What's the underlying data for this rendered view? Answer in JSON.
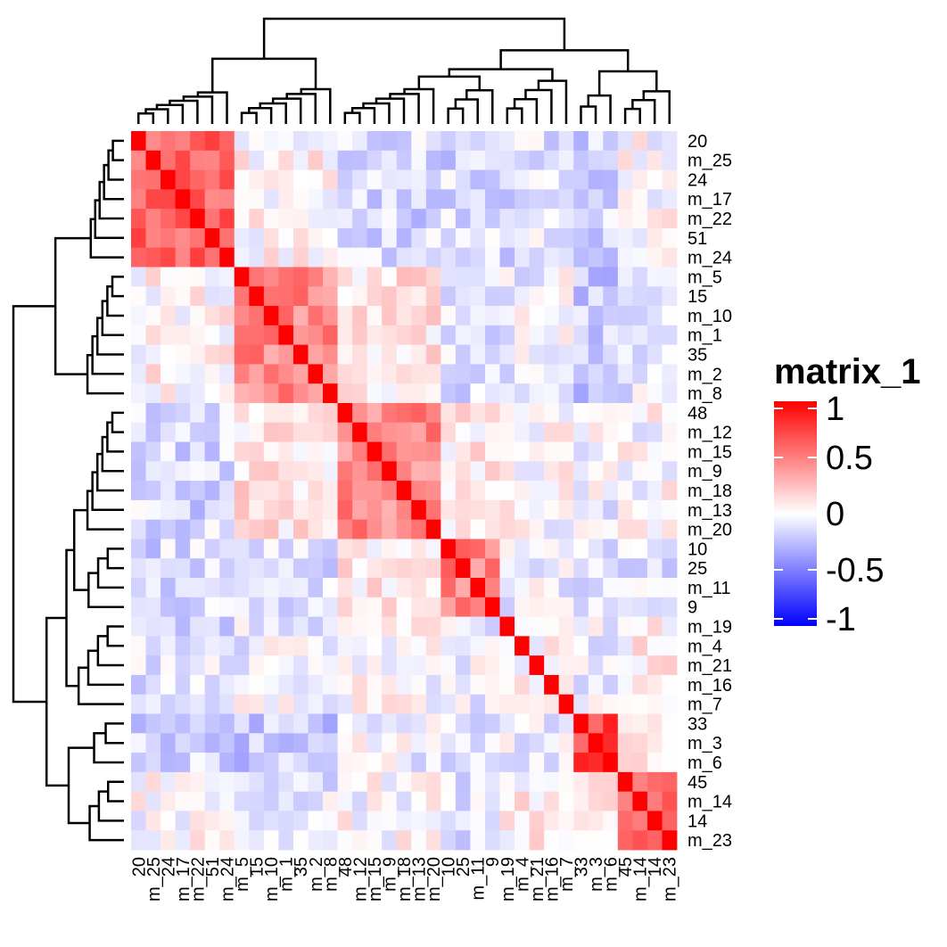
{
  "chart_data": {
    "type": "heatmap",
    "title": "",
    "legend": {
      "title": "matrix_1",
      "ticks": [
        1,
        0.5,
        0,
        -0.5,
        -1
      ],
      "tick_labels": [
        "1",
        "0.5",
        "0",
        "-0.5",
        "-1"
      ],
      "placement": "right",
      "colors": {
        "low": "#0000ff",
        "mid": "#ffffff",
        "high": "#ff0000"
      },
      "range": [
        -1,
        1
      ]
    },
    "row_labels": [
      "20",
      "m_25",
      "24",
      "m_17",
      "m_22",
      "51",
      "m_24",
      "m_5",
      "15",
      "m_10",
      "m_1",
      "35",
      "m_2",
      "m_8",
      "48",
      "m_12",
      "m_15",
      "m_9",
      "m_18",
      "m_13",
      "m_20",
      "10",
      "25",
      "m_11",
      "9",
      "m_19",
      "m_4",
      "m_21",
      "m_16",
      "m_7",
      "33",
      "m_3",
      "m_6",
      "45",
      "m_14",
      "14",
      "m_23"
    ],
    "col_labels": [
      "20",
      "m_25",
      "24",
      "m_17",
      "m_22",
      "51",
      "m_24",
      "m_5",
      "15",
      "m_10",
      "m_1",
      "35",
      "m_2",
      "m_8",
      "48",
      "m_12",
      "m_15",
      "m_9",
      "m_18",
      "m_13",
      "m_20",
      "10",
      "25",
      "m_11",
      "9",
      "m_19",
      "m_4",
      "m_21",
      "m_16",
      "m_7",
      "33",
      "m_3",
      "m_6",
      "45",
      "m_14",
      "14",
      "m_23"
    ],
    "clusters": [
      {
        "start": 0,
        "end": 6,
        "within": 0.6
      },
      {
        "start": 7,
        "end": 13,
        "within": 0.45
      },
      {
        "start": 14,
        "end": 20,
        "within": 0.45
      },
      {
        "start": 21,
        "end": 24,
        "within": 0.5
      },
      {
        "start": 25,
        "end": 29,
        "within": 0.05
      },
      {
        "start": 30,
        "end": 32,
        "within": 0.75
      },
      {
        "start": 33,
        "end": 36,
        "within": 0.55
      }
    ],
    "cluster_correlation": [
      [
        0.6,
        0.05,
        -0.15,
        -0.15,
        -0.12,
        -0.18,
        0.0
      ],
      [
        0.05,
        0.45,
        0.1,
        -0.15,
        -0.05,
        -0.2,
        -0.1
      ],
      [
        -0.15,
        0.1,
        0.45,
        0.1,
        0.0,
        -0.05,
        0.0
      ],
      [
        -0.15,
        -0.15,
        0.1,
        0.5,
        -0.05,
        -0.1,
        -0.1
      ],
      [
        -0.12,
        -0.05,
        0.0,
        -0.05,
        0.05,
        -0.05,
        0.05
      ],
      [
        -0.18,
        -0.2,
        -0.05,
        -0.1,
        -0.05,
        0.75,
        0.1
      ],
      [
        0.0,
        -0.1,
        0.0,
        -0.1,
        0.05,
        0.1,
        0.55
      ]
    ],
    "dendrogram": true
  }
}
